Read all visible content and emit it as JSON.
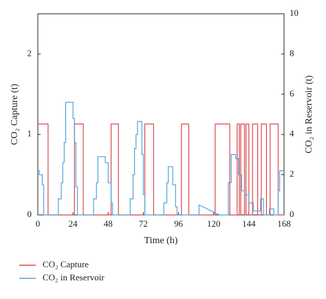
{
  "chart_data": {
    "type": "line",
    "xlabel": "Time (h)",
    "ylabel": "CO₂ Capture (t)",
    "y2label": "CO₂ in Reservoir (t)",
    "xlim": [
      0,
      168
    ],
    "xticks": [
      0,
      24,
      48,
      72,
      96,
      120,
      144,
      168
    ],
    "ylim": [
      0,
      2.5
    ],
    "yticks": [
      0,
      1,
      2
    ],
    "y2lim": [
      0,
      10
    ],
    "y2ticks": [
      0,
      2,
      4,
      6,
      8,
      10
    ],
    "legend": "bottom-left",
    "series": [
      {
        "name": "CO₂ Capture",
        "color": "#d9454a",
        "axis": "y",
        "x": [
          0,
          7,
          7,
          25,
          25,
          31,
          31,
          50,
          50,
          55,
          55,
          73,
          73,
          79,
          79,
          98,
          98,
          103,
          103,
          121,
          121,
          131,
          131,
          136,
          136,
          137.5,
          137.5,
          138.5,
          138.5,
          141,
          141,
          142,
          142,
          144,
          144,
          146.5,
          146.5,
          150,
          150,
          152.5,
          152.5,
          156,
          156,
          158.5,
          158.5,
          164,
          164,
          168
        ],
        "values": [
          1.13,
          1.13,
          0,
          0,
          1.13,
          1.13,
          0,
          0,
          1.13,
          1.13,
          0,
          0,
          1.13,
          1.13,
          0,
          0,
          1.13,
          1.13,
          0,
          0,
          1.13,
          1.13,
          0,
          0,
          1.13,
          1.13,
          0,
          0,
          1.13,
          1.13,
          0,
          0,
          1.13,
          1.13,
          0,
          0,
          1.13,
          1.13,
          0,
          0,
          1.13,
          1.13,
          0,
          0,
          1.13,
          1.13,
          0,
          0
        ]
      },
      {
        "name": "CO₂ in Reservoir",
        "color": "#4fa3dc",
        "axis": "y2",
        "x": [
          0,
          1,
          1,
          3,
          3,
          4,
          4,
          14,
          14,
          16,
          16,
          17,
          17,
          18,
          18,
          19,
          19,
          24,
          24,
          25,
          25,
          26,
          26,
          27,
          27,
          38,
          38,
          40,
          40,
          41,
          41,
          46,
          46,
          48,
          48,
          50,
          50,
          51,
          51,
          63,
          63,
          65,
          65,
          66,
          66,
          67,
          67,
          68,
          68,
          71,
          71,
          72,
          72,
          73,
          73,
          86,
          86,
          88,
          88,
          89,
          89,
          92,
          92,
          94,
          94,
          95,
          95,
          110,
          110,
          124,
          130,
          130,
          132,
          132,
          135,
          135,
          137,
          137,
          139,
          139,
          141,
          141,
          144,
          144,
          147,
          147,
          152,
          152,
          154,
          154,
          158,
          158,
          161,
          161,
          164,
          164,
          165,
          165,
          168
        ],
        "values": [
          2.2,
          2.2,
          2.0,
          2.0,
          1.5,
          1.5,
          0,
          0,
          0.8,
          0.8,
          1.6,
          1.6,
          2.6,
          2.6,
          3.6,
          3.6,
          5.6,
          5.6,
          4.8,
          4.8,
          3.6,
          3.6,
          1.4,
          1.4,
          0,
          0,
          0.8,
          0.8,
          1.6,
          1.6,
          2.9,
          2.9,
          2.6,
          2.6,
          1.6,
          1.6,
          0.6,
          0.6,
          0,
          0,
          0.8,
          0.8,
          2.0,
          2.0,
          3.3,
          3.3,
          4.0,
          4.0,
          4.65,
          4.65,
          3.0,
          3.0,
          1.0,
          1.0,
          0,
          0,
          0.6,
          0.6,
          1.6,
          1.6,
          2.4,
          2.4,
          1.5,
          1.5,
          0.4,
          0.4,
          0,
          0,
          0.5,
          0,
          0,
          1.6,
          1.6,
          3.0,
          3.0,
          2.8,
          2.8,
          2.0,
          2.0,
          1.2,
          1.2,
          1.0,
          1.0,
          0.6,
          0.6,
          0.2,
          0.2,
          0.8,
          0.8,
          0,
          0,
          0.3,
          0.3,
          0,
          0,
          1.2,
          1.2,
          2.2,
          2.2
        ]
      }
    ]
  }
}
